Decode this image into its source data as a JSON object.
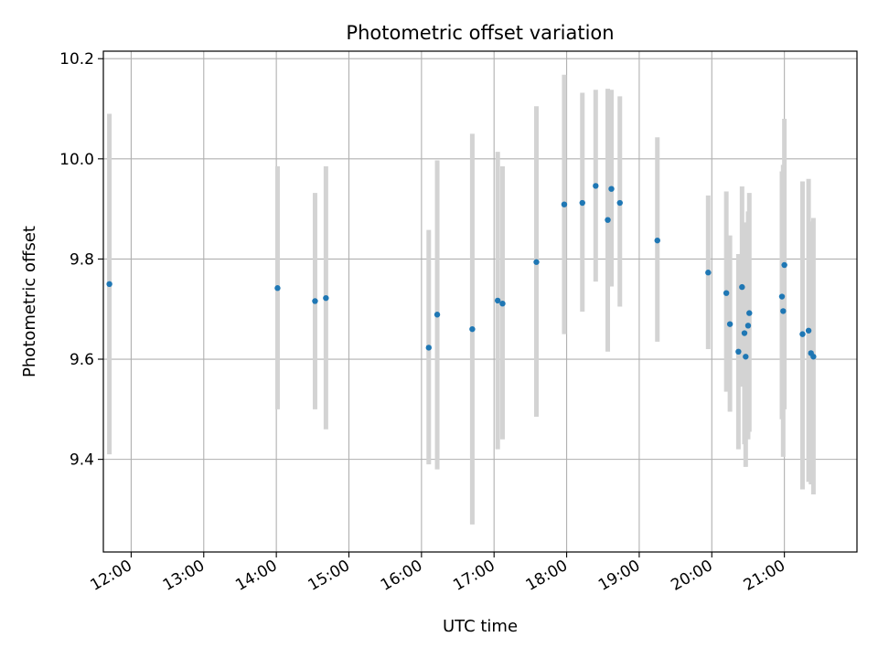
{
  "chart_data": {
    "type": "scatter",
    "title": "Photometric offset variation",
    "xlabel": "UTC time",
    "ylabel": "Photometric offset",
    "x_unit": "UTC time of day (HH:MM)",
    "xlim": [
      "11:37",
      "22:00"
    ],
    "ylim": [
      9.215,
      10.215
    ],
    "x_ticks": [
      "12:00",
      "13:00",
      "14:00",
      "15:00",
      "16:00",
      "17:00",
      "18:00",
      "19:00",
      "20:00",
      "21:00"
    ],
    "y_ticks": [
      9.4,
      9.6,
      9.8,
      10.0,
      10.2
    ],
    "y_tick_labels": [
      "9.4",
      "9.6",
      "9.8",
      "10.0",
      "10.2"
    ],
    "grid": true,
    "marker_color": "#1f77b4",
    "errorbar_color": "#d3d3d3",
    "points": [
      {
        "t": "11:42",
        "y": 9.75,
        "lo": 9.41,
        "hi": 10.09
      },
      {
        "t": "14:01",
        "y": 9.742,
        "lo": 9.5,
        "hi": 9.985
      },
      {
        "t": "14:32",
        "y": 9.716,
        "lo": 9.5,
        "hi": 9.932
      },
      {
        "t": "14:41",
        "y": 9.722,
        "lo": 9.46,
        "hi": 9.985
      },
      {
        "t": "16:06",
        "y": 9.623,
        "lo": 9.39,
        "hi": 9.858
      },
      {
        "t": "16:13",
        "y": 9.689,
        "lo": 9.38,
        "hi": 9.997
      },
      {
        "t": "16:42",
        "y": 9.66,
        "lo": 9.27,
        "hi": 10.05
      },
      {
        "t": "17:03",
        "y": 9.717,
        "lo": 9.42,
        "hi": 10.014
      },
      {
        "t": "17:07",
        "y": 9.711,
        "lo": 9.44,
        "hi": 9.985
      },
      {
        "t": "17:35",
        "y": 9.794,
        "lo": 9.485,
        "hi": 10.105
      },
      {
        "t": "17:58",
        "y": 9.909,
        "lo": 9.65,
        "hi": 10.168
      },
      {
        "t": "18:13",
        "y": 9.912,
        "lo": 9.695,
        "hi": 10.132
      },
      {
        "t": "18:24",
        "y": 9.946,
        "lo": 9.755,
        "hi": 10.138
      },
      {
        "t": "18:34",
        "y": 9.878,
        "lo": 9.615,
        "hi": 10.14
      },
      {
        "t": "18:37",
        "y": 9.94,
        "lo": 9.745,
        "hi": 10.138
      },
      {
        "t": "18:44",
        "y": 9.912,
        "lo": 9.705,
        "hi": 10.125
      },
      {
        "t": "19:15",
        "y": 9.837,
        "lo": 9.635,
        "hi": 10.043
      },
      {
        "t": "19:57",
        "y": 9.773,
        "lo": 9.62,
        "hi": 9.927
      },
      {
        "t": "20:12",
        "y": 9.732,
        "lo": 9.535,
        "hi": 9.935
      },
      {
        "t": "20:15",
        "y": 9.67,
        "lo": 9.495,
        "hi": 9.847
      },
      {
        "t": "20:22",
        "y": 9.615,
        "lo": 9.42,
        "hi": 9.81
      },
      {
        "t": "20:25",
        "y": 9.744,
        "lo": 9.545,
        "hi": 9.945
      },
      {
        "t": "20:27",
        "y": 9.652,
        "lo": 9.43,
        "hi": 9.873
      },
      {
        "t": "20:28",
        "y": 9.605,
        "lo": 9.385,
        "hi": 9.825
      },
      {
        "t": "20:30",
        "y": 9.667,
        "lo": 9.44,
        "hi": 9.895
      },
      {
        "t": "20:31",
        "y": 9.692,
        "lo": 9.455,
        "hi": 9.932
      },
      {
        "t": "20:58",
        "y": 9.725,
        "lo": 9.48,
        "hi": 9.975
      },
      {
        "t": "20:59",
        "y": 9.696,
        "lo": 9.405,
        "hi": 9.988
      },
      {
        "t": "21:00",
        "y": 9.788,
        "lo": 9.5,
        "hi": 10.08
      },
      {
        "t": "21:15",
        "y": 9.65,
        "lo": 9.34,
        "hi": 9.955
      },
      {
        "t": "21:20",
        "y": 9.657,
        "lo": 9.355,
        "hi": 9.96
      },
      {
        "t": "21:22",
        "y": 9.612,
        "lo": 9.35,
        "hi": 9.875
      },
      {
        "t": "21:24",
        "y": 9.605,
        "lo": 9.33,
        "hi": 9.882
      }
    ]
  }
}
